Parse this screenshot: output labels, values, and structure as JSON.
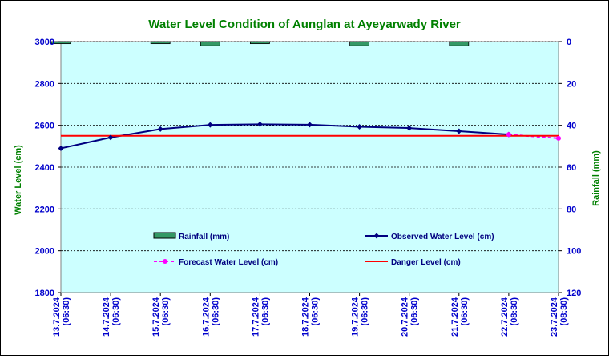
{
  "chart_data": {
    "type": "line",
    "title": "Water Level Condition of Aunglan at Ayeyarwady River",
    "ylabel_left": "Water Level (cm)",
    "ylabel_right": "Rainfall (mm)",
    "ylim_left": [
      1800,
      3000
    ],
    "yticks_left": [
      "1800",
      "2000",
      "2200",
      "2400",
      "2600",
      "2800",
      "3000"
    ],
    "ylim_right": [
      0,
      120
    ],
    "right_axis_inverted": true,
    "yticks_right": [
      "0",
      "20",
      "40",
      "60",
      "80",
      "100",
      "120"
    ],
    "grid": "horizontal dashed",
    "categories": [
      [
        "13.7.2024",
        "(06:30)"
      ],
      [
        "14.7.2024",
        "(06:30)"
      ],
      [
        "15.7.2024",
        "(06:30)"
      ],
      [
        "16.7.2024",
        "(06:30)"
      ],
      [
        "17.7.2024",
        "(06:30)"
      ],
      [
        "18.7.2024",
        "(06:30)"
      ],
      [
        "19.7.2024",
        "(06:30)"
      ],
      [
        "20.7.2024",
        "(06:30)"
      ],
      [
        "21.7.2024",
        "(06:30)"
      ],
      [
        "22.7.2024",
        "(08:30)"
      ],
      [
        "23.7.2024",
        "(08:30)"
      ]
    ],
    "series": [
      {
        "name": "Rainfall (mm)",
        "kind": "bar",
        "axis": "right",
        "color": "#339966",
        "values": [
          1,
          0,
          1,
          2,
          1,
          0,
          2,
          0,
          2,
          0,
          0
        ]
      },
      {
        "name": "Observed Water Level (cm)",
        "kind": "line",
        "axis": "left",
        "color": "#000080",
        "marker": "diamond",
        "values": [
          2490,
          2542,
          2582,
          2602,
          2605,
          2603,
          2593,
          2587,
          2572,
          2556,
          null
        ]
      },
      {
        "name": "Forecast Water Level (cm)",
        "kind": "line",
        "axis": "left",
        "color": "#ff00ff",
        "marker": "circle",
        "dashed": true,
        "values": [
          null,
          null,
          null,
          null,
          null,
          null,
          null,
          null,
          null,
          2556,
          2538
        ]
      },
      {
        "name": "Danger Level (cm)",
        "kind": "line",
        "axis": "left",
        "color": "#ff0000",
        "values": [
          2550,
          2550,
          2550,
          2550,
          2550,
          2550,
          2550,
          2550,
          2550,
          2550,
          2550
        ]
      }
    ],
    "legend": "inside plot, lower half, two columns"
  }
}
